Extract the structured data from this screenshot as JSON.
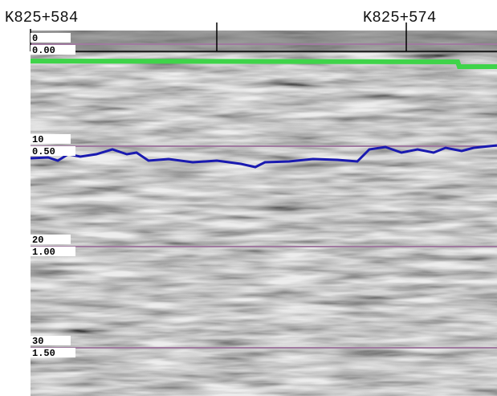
{
  "header": {
    "left_station": "K825+584",
    "right_station": "K825+574"
  },
  "depth_scale": {
    "rows": [
      {
        "time": "0",
        "depth": "0.00"
      },
      {
        "time": "10",
        "depth": "0.50"
      },
      {
        "time": "20",
        "depth": "1.00"
      },
      {
        "time": "30",
        "depth": "1.50"
      }
    ]
  }
}
